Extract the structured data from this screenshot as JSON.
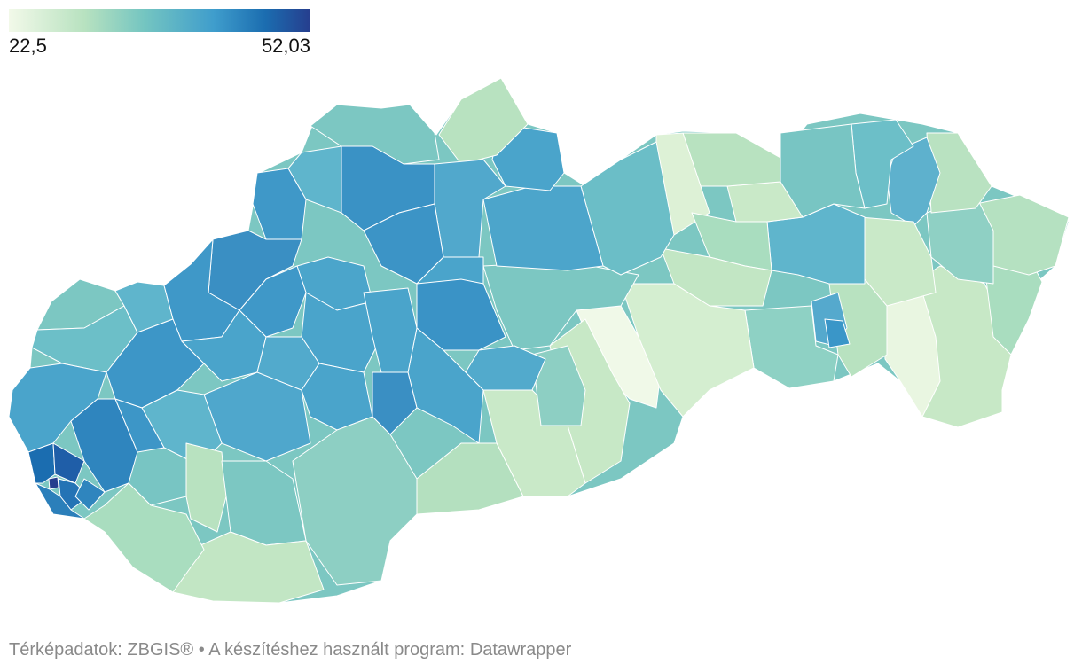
{
  "legend": {
    "min_label": "22,5",
    "max_label": "52,03",
    "color_low": "#f2f9e9",
    "color_high": "#263e8e"
  },
  "footer": {
    "map_source_label": "Térképadatok:",
    "map_source": "ZBGIS®",
    "separator": "•",
    "tool_label": "A készítéshez használt program:",
    "tool": "Datawrapper"
  }
}
